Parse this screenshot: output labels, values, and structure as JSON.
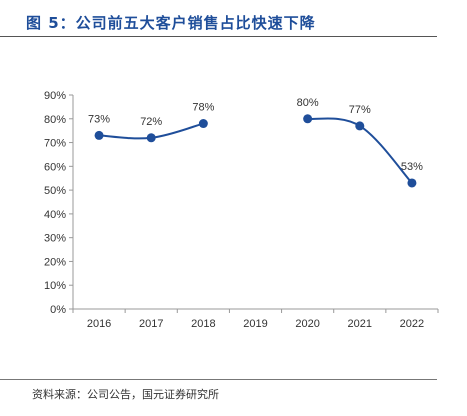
{
  "figure": {
    "title": "图 5：公司前五大客户销售占比快速下降",
    "source": "资料来源：公司公告，国元证券研究所"
  },
  "chart_data": {
    "type": "line",
    "title": "",
    "xlabel": "",
    "ylabel": "",
    "categories": [
      "2016",
      "2017",
      "2018",
      "2019",
      "2020",
      "2021",
      "2022"
    ],
    "series": [
      {
        "values": [
          73,
          72,
          78,
          null,
          80,
          77,
          53
        ],
        "labels": [
          "73%",
          "72%",
          "78%",
          "",
          "80%",
          "77%",
          "53%"
        ]
      }
    ],
    "ylim": [
      0,
      90
    ],
    "yticks": [
      "0%",
      "10%",
      "20%",
      "30%",
      "40%",
      "50%",
      "60%",
      "70%",
      "80%",
      "90%"
    ],
    "grid": false,
    "legend": "none",
    "line_color": "#1f4e9a"
  }
}
